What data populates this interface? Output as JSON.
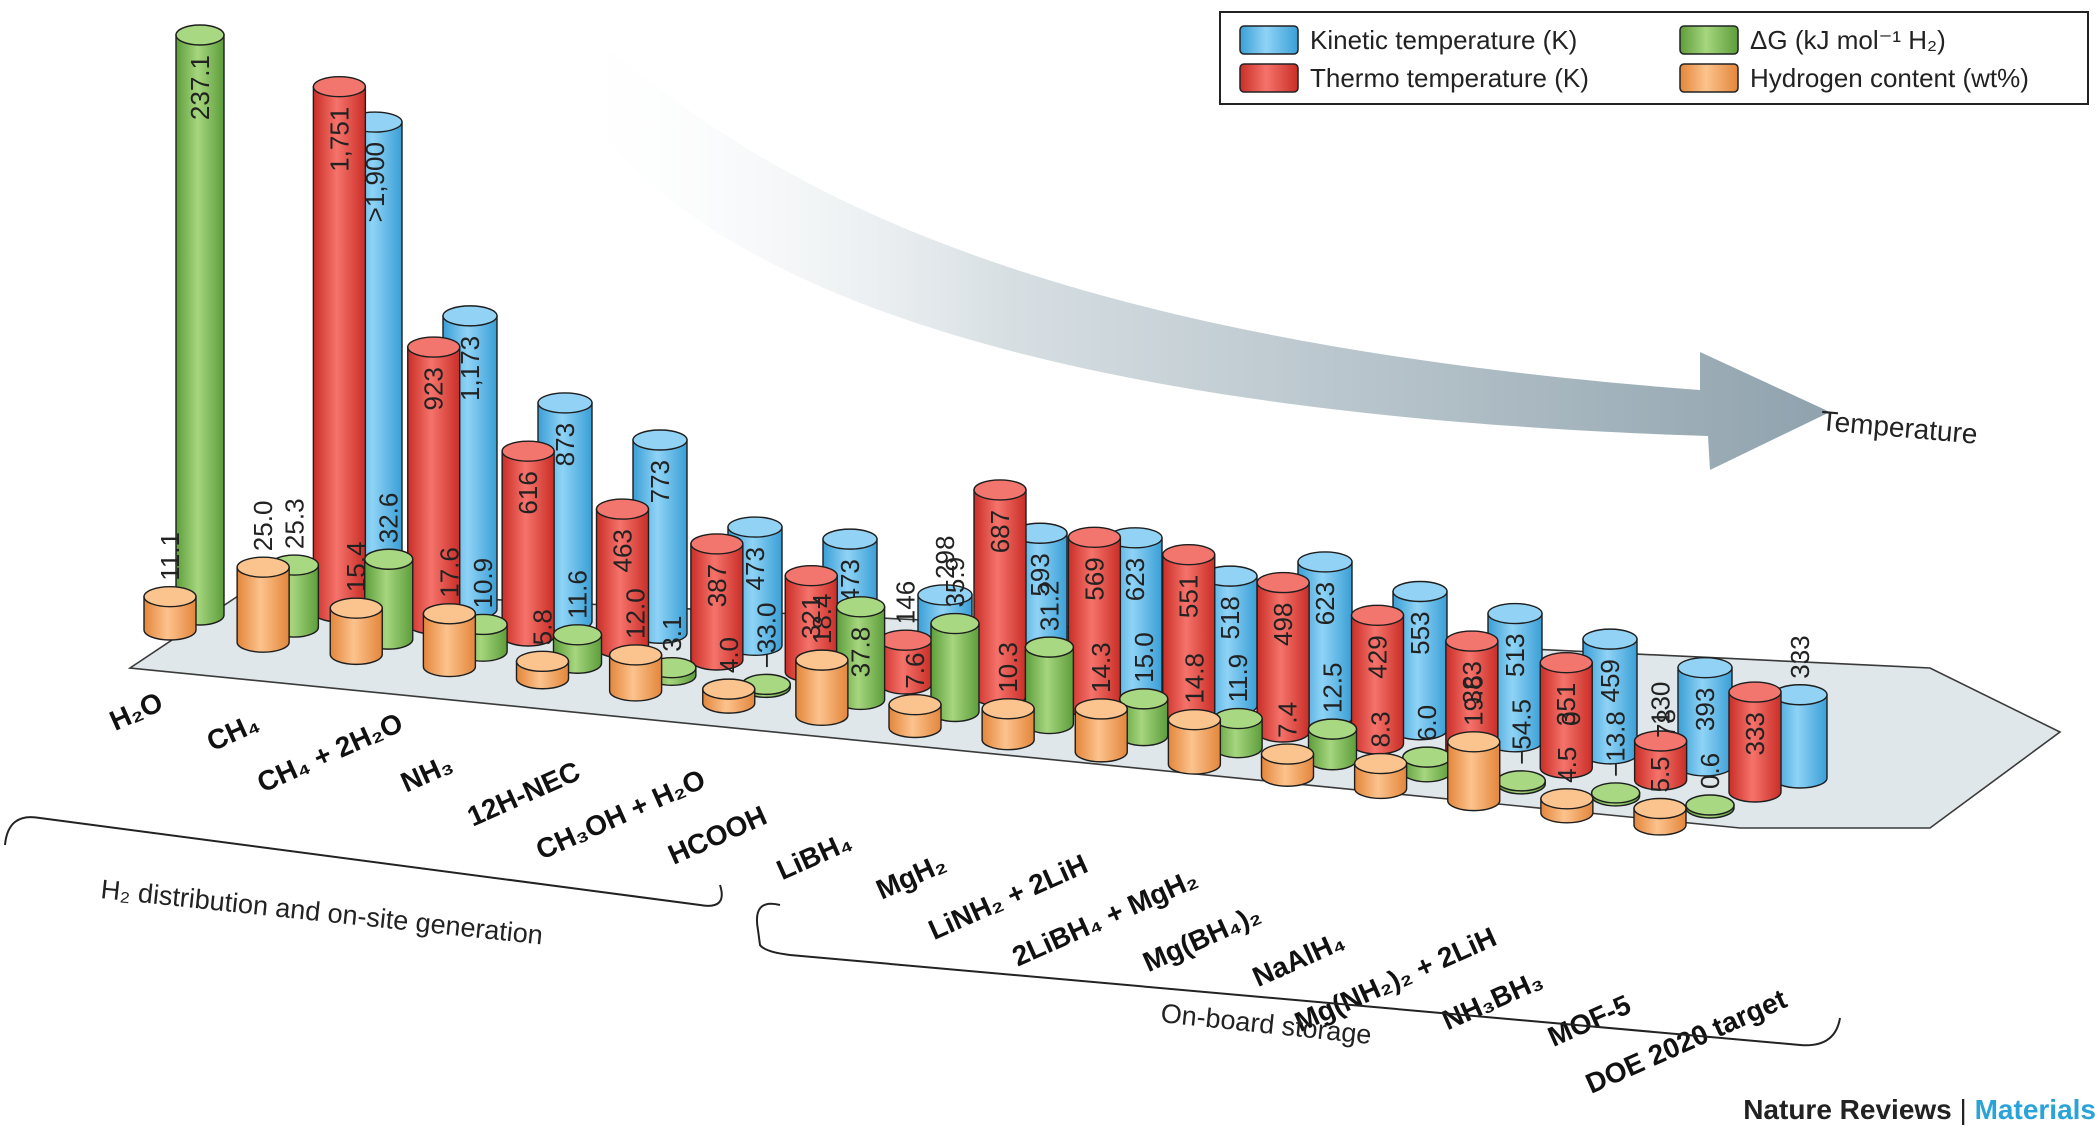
{
  "legend": {
    "kinetic": "Kinetic temperature (K)",
    "thermo": "Thermo temperature (K)",
    "dg": "ΔG (kJ mol⁻¹ H₂)",
    "h2": "Hydrogen content (wt%)"
  },
  "arrow_label": "Temperature",
  "groups": {
    "distribution": "H₂ distribution and on-site generation",
    "onboard": "On-board storage"
  },
  "credit": {
    "journal": "Nature Reviews",
    "separator": "|",
    "section": "Materials"
  },
  "colors": {
    "kinetic": "#5bb8ea",
    "thermo": "#e8413a",
    "dg": "#7cb956",
    "h2": "#f5a25a",
    "platform": "#dfe7ea",
    "arrow": "#8fa2ad"
  },
  "chart_data": {
    "type": "bar",
    "style": "3d-cylinder",
    "categories": [
      "H₂O",
      "CH₄",
      "CH₄ + 2H₂O",
      "NH₃",
      "12H-NEC",
      "CH₃OH + H₂O",
      "HCOOH",
      "LiBH₄",
      "MgH₂",
      "LiNH₂ + 2LiH",
      "2LiBH₄ + MgH₂",
      "Mg(BH₄)₂",
      "NaAlH₄",
      "Mg(NH₂)₂ + 2LiH",
      "NH₃BH₃",
      "MOF-5",
      "DOE 2020 target"
    ],
    "series": [
      {
        "name": "Hydrogen content (wt%)",
        "values": [
          11.1,
          25.0,
          15.4,
          17.6,
          5.8,
          12.0,
          4.0,
          18.4,
          7.6,
          10.3,
          14.3,
          14.8,
          7.4,
          8.3,
          19.6,
          4.5,
          5.5
        ],
        "labels": [
          "11.1",
          "25.0",
          "15.4",
          "17.6",
          "5.8",
          "12.0",
          "4.0",
          "18.4",
          "7.6",
          "10.3",
          "14.3",
          "14.8",
          "7.4",
          "8.3",
          "19.6",
          "4.5",
          "5.5"
        ]
      },
      {
        "name": "ΔG (kJ mol⁻¹ H₂)",
        "values": [
          237.1,
          25.3,
          32.6,
          10.9,
          11.6,
          3.1,
          -33.0,
          37.8,
          35.9,
          31.2,
          15.0,
          11.9,
          12.5,
          6.0,
          -54.5,
          -13.8,
          0.6
        ],
        "labels": [
          "237.1",
          "25.3",
          "32.6",
          "10.9",
          "11.6",
          "3.1",
          "−33.0",
          "37.8",
          "35.9",
          "31.2",
          "15.0",
          "11.9",
          "12.5",
          "6.0",
          "−54.5",
          "−13.8",
          "0.6"
        ]
      },
      {
        "name": "Thermo temperature (K)",
        "values": [
          null,
          1751,
          923,
          616,
          463,
          387,
          321,
          146,
          687,
          569,
          551,
          498,
          429,
          383,
          351,
          130,
          333
        ],
        "labels": [
          null,
          "1,751",
          "923",
          "616",
          "463",
          "387",
          "321",
          "146",
          "687",
          "569",
          "551",
          "498",
          "429",
          "383",
          "351",
          "130",
          "333"
        ]
      },
      {
        "name": "Kinetic temperature (K)",
        "values": [
          null,
          1900,
          1173,
          873,
          773,
          473,
          473,
          298,
          593,
          623,
          518,
          623,
          553,
          513,
          459,
          393,
          333
        ],
        "labels": [
          null,
          ">1,900",
          "1,173",
          "873",
          "773",
          "473",
          "473",
          "298",
          "593",
          "623",
          "518",
          "623",
          "553",
          "513",
          "459",
          "393",
          "333"
        ]
      }
    ],
    "extra_labels": [
      {
        "category": "NH₃BH₃",
        "text": "0"
      },
      {
        "category": "MOF-5",
        "text": "78"
      }
    ],
    "xlabel": "",
    "ylabel": "",
    "legend_position": "top-right"
  }
}
